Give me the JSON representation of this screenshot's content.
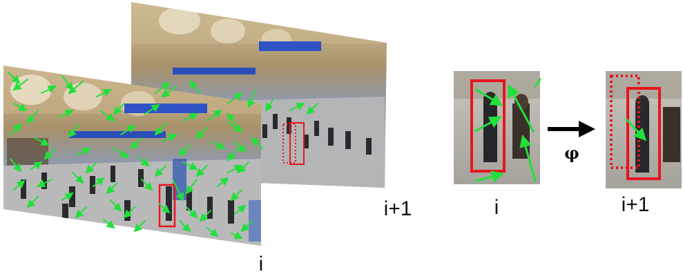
{
  "labels": {
    "frame_back": "i+1",
    "frame_front": "i",
    "crop_left": "i",
    "crop_right": "i+1",
    "operator": "φ"
  },
  "colors": {
    "flow_arrow": "#22e03a",
    "box": "#e8141e",
    "transform_arrow": "#000000"
  },
  "icons": {
    "operator_arrow": "right-arrow-icon"
  }
}
